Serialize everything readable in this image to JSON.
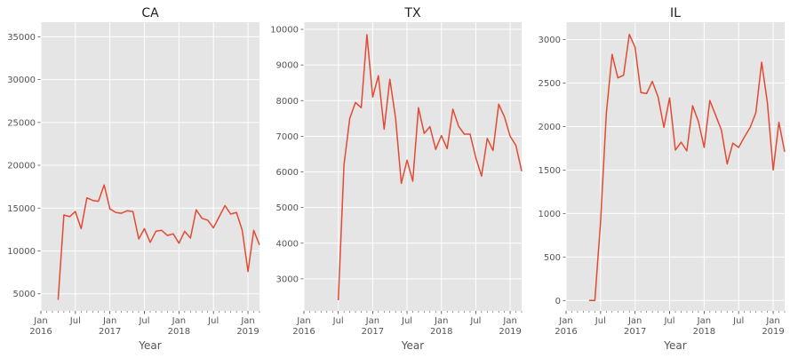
{
  "chart_data": [
    {
      "type": "line",
      "title": "CA",
      "xlabel": "Year",
      "ylabel": "",
      "grid": true,
      "line_color": "#E24A33",
      "background_color": "#E5E5E5",
      "grid_color": "#FFFFFF",
      "xlim": [
        "2016-01",
        "2019-03"
      ],
      "ylim": [
        3000,
        36700
      ],
      "yticks": [
        5000,
        10000,
        15000,
        20000,
        25000,
        30000,
        35000
      ],
      "x": [
        "2016-04",
        "2016-05",
        "2016-06",
        "2016-07",
        "2016-08",
        "2016-09",
        "2016-10",
        "2016-11",
        "2016-12",
        "2017-01",
        "2017-02",
        "2017-03",
        "2017-04",
        "2017-05",
        "2017-06",
        "2017-07",
        "2017-08",
        "2017-09",
        "2017-10",
        "2017-11",
        "2017-12",
        "2018-01",
        "2018-02",
        "2018-03",
        "2018-04",
        "2018-05",
        "2018-06",
        "2018-07",
        "2018-08",
        "2018-09",
        "2018-10",
        "2018-11",
        "2018-12",
        "2019-01",
        "2019-02",
        "2019-03"
      ],
      "values": [
        4300,
        14200,
        14000,
        14600,
        12600,
        16200,
        15900,
        15800,
        17700,
        14900,
        14500,
        14400,
        14700,
        14600,
        11400,
        12600,
        11000,
        12300,
        12400,
        11800,
        12000,
        10900,
        12300,
        11500,
        14800,
        13800,
        13600,
        12700,
        14000,
        15300,
        14300,
        14500,
        12400,
        7600,
        12400,
        10700
      ]
    },
    {
      "type": "line",
      "title": "TX",
      "xlabel": "Year",
      "ylabel": "",
      "grid": true,
      "line_color": "#E24A33",
      "background_color": "#E5E5E5",
      "grid_color": "#FFFFFF",
      "xlim": [
        "2016-01",
        "2019-03"
      ],
      "ylim": [
        2100,
        10200
      ],
      "yticks": [
        3000,
        4000,
        5000,
        6000,
        7000,
        8000,
        9000,
        10000
      ],
      "x": [
        "2016-07",
        "2016-08",
        "2016-09",
        "2016-10",
        "2016-11",
        "2016-12",
        "2017-01",
        "2017-02",
        "2017-03",
        "2017-04",
        "2017-05",
        "2017-06",
        "2017-07",
        "2017-08",
        "2017-09",
        "2017-10",
        "2017-11",
        "2017-12",
        "2018-01",
        "2018-02",
        "2018-03",
        "2018-04",
        "2018-05",
        "2018-06",
        "2018-07",
        "2018-08",
        "2018-09",
        "2018-10",
        "2018-11",
        "2018-12",
        "2019-01",
        "2019-02",
        "2019-03"
      ],
      "values": [
        2400,
        6200,
        7500,
        7950,
        7800,
        9850,
        8100,
        8700,
        7200,
        8600,
        7500,
        5680,
        6330,
        5740,
        7800,
        7080,
        7270,
        6630,
        7020,
        6650,
        7760,
        7280,
        7060,
        7060,
        6400,
        5880,
        6940,
        6600,
        7900,
        7540,
        7000,
        6740,
        6020
      ]
    },
    {
      "type": "line",
      "title": "IL",
      "xlabel": "Year",
      "ylabel": "",
      "grid": true,
      "line_color": "#E24A33",
      "background_color": "#E5E5E5",
      "grid_color": "#FFFFFF",
      "xlim": [
        "2016-01",
        "2019-03"
      ],
      "ylim": [
        -120,
        3200
      ],
      "yticks": [
        0,
        500,
        1000,
        1500,
        2000,
        2500,
        3000
      ],
      "x": [
        "2016-05",
        "2016-06",
        "2016-07",
        "2016-08",
        "2016-09",
        "2016-10",
        "2016-11",
        "2016-12",
        "2017-01",
        "2017-02",
        "2017-03",
        "2017-04",
        "2017-05",
        "2017-06",
        "2017-07",
        "2017-08",
        "2017-09",
        "2017-10",
        "2017-11",
        "2017-12",
        "2018-01",
        "2018-02",
        "2018-03",
        "2018-04",
        "2018-05",
        "2018-06",
        "2018-07",
        "2018-08",
        "2018-09",
        "2018-10",
        "2018-11",
        "2018-12",
        "2019-01",
        "2019-02",
        "2019-03"
      ],
      "values": [
        0,
        0,
        900,
        2150,
        2830,
        2560,
        2590,
        3060,
        2910,
        2390,
        2380,
        2520,
        2340,
        1990,
        2330,
        1730,
        1820,
        1720,
        2240,
        2060,
        1760,
        2300,
        2130,
        1960,
        1570,
        1810,
        1760,
        1880,
        1990,
        2160,
        2740,
        2270,
        1500,
        2050,
        1710
      ]
    }
  ],
  "xtick_labels": [
    {
      "date": "2016-01",
      "label": "Jan\n2016"
    },
    {
      "date": "2016-07",
      "label": "Jul"
    },
    {
      "date": "2017-01",
      "label": "Jan\n2017"
    },
    {
      "date": "2017-07",
      "label": "Jul"
    },
    {
      "date": "2018-01",
      "label": "Jan\n2018"
    },
    {
      "date": "2018-07",
      "label": "Jul"
    },
    {
      "date": "2019-01",
      "label": "Jan\n2019"
    }
  ]
}
